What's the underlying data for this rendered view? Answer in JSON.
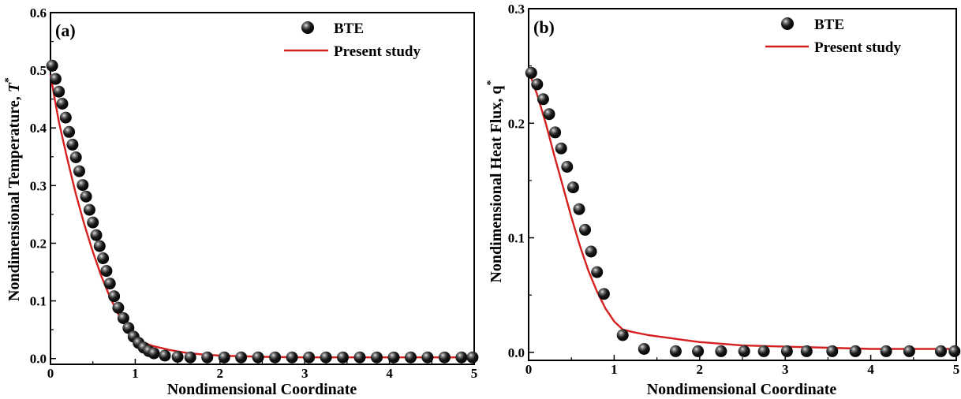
{
  "colors": {
    "model_line": "#d62020",
    "marker": "#111111",
    "axis": "#000000"
  },
  "chart_data": [
    {
      "type": "scatter",
      "panel_label": "(a)",
      "xlabel": "Nondimensional Coordinate",
      "ylabel": {
        "text": "Nondimensional Temperature, ",
        "symbol": "T",
        "superscript": "*"
      },
      "xlim": [
        0,
        5
      ],
      "ylim": [
        -0.01,
        0.6
      ],
      "xticks": [
        "0",
        "1",
        "2",
        "3",
        "4",
        "5"
      ],
      "yticks": [
        "0.0",
        "0.1",
        "0.2",
        "0.3",
        "0.4",
        "0.5",
        "0.6"
      ],
      "legend": {
        "position": "top-right",
        "entries": [
          "BTE",
          "Present study"
        ]
      },
      "series": [
        {
          "name": "BTE",
          "kind": "markers",
          "x": [
            0.02,
            0.06,
            0.1,
            0.14,
            0.18,
            0.22,
            0.26,
            0.3,
            0.34,
            0.38,
            0.42,
            0.46,
            0.5,
            0.54,
            0.58,
            0.62,
            0.66,
            0.7,
            0.75,
            0.8,
            0.86,
            0.92,
            0.98,
            1.04,
            1.1,
            1.16,
            1.22,
            1.35,
            1.5,
            1.65,
            1.85,
            2.05,
            2.25,
            2.45,
            2.65,
            2.85,
            3.05,
            3.25,
            3.45,
            3.65,
            3.85,
            4.05,
            4.25,
            4.45,
            4.65,
            4.85,
            4.98
          ],
          "y": [
            0.508,
            0.485,
            0.463,
            0.442,
            0.418,
            0.393,
            0.371,
            0.349,
            0.325,
            0.301,
            0.281,
            0.258,
            0.236,
            0.214,
            0.195,
            0.174,
            0.152,
            0.13,
            0.108,
            0.088,
            0.07,
            0.053,
            0.038,
            0.027,
            0.019,
            0.013,
            0.009,
            0.005,
            0.003,
            0.002,
            0.002,
            0.002,
            0.002,
            0.002,
            0.002,
            0.002,
            0.002,
            0.002,
            0.002,
            0.002,
            0.002,
            0.002,
            0.002,
            0.002,
            0.002,
            0.002,
            0.002
          ]
        },
        {
          "name": "Present study",
          "kind": "line",
          "x": [
            0.0,
            0.05,
            0.1,
            0.2,
            0.3,
            0.4,
            0.5,
            0.6,
            0.7,
            0.8,
            0.9,
            1.0,
            1.1,
            1.2,
            1.4,
            1.6,
            1.8,
            2.0,
            2.5,
            3.0,
            4.0,
            5.0
          ],
          "y": [
            0.492,
            0.45,
            0.41,
            0.345,
            0.285,
            0.232,
            0.185,
            0.143,
            0.107,
            0.077,
            0.054,
            0.037,
            0.028,
            0.022,
            0.015,
            0.01,
            0.007,
            0.005,
            0.003,
            0.002,
            0.002,
            0.002
          ]
        }
      ]
    },
    {
      "type": "scatter",
      "panel_label": "(b)",
      "xlabel": "Nondimensional Coordinate",
      "ylabel": {
        "text": "Nondimensional Heat Flux, q",
        "symbol": "",
        "superscript": "*"
      },
      "xlim": [
        0,
        5
      ],
      "ylim": [
        -0.007,
        0.3
      ],
      "xticks": [
        "0",
        "1",
        "2",
        "3",
        "4",
        "5"
      ],
      "yticks": [
        "0.0",
        "0.1",
        "0.2",
        "0.3"
      ],
      "legend": {
        "position": "top-right",
        "entries": [
          "BTE",
          "Present study"
        ]
      },
      "series": [
        {
          "name": "BTE",
          "kind": "markers",
          "x": [
            0.03,
            0.1,
            0.17,
            0.24,
            0.31,
            0.38,
            0.45,
            0.52,
            0.59,
            0.66,
            0.73,
            0.8,
            0.88,
            1.1,
            1.35,
            1.72,
            1.98,
            2.25,
            2.52,
            2.75,
            3.02,
            3.25,
            3.55,
            3.82,
            4.18,
            4.45,
            4.82,
            4.98
          ],
          "y": [
            0.244,
            0.234,
            0.221,
            0.208,
            0.192,
            0.178,
            0.162,
            0.144,
            0.125,
            0.107,
            0.088,
            0.07,
            0.051,
            0.015,
            0.003,
            0.001,
            0.001,
            0.001,
            0.001,
            0.001,
            0.001,
            0.001,
            0.001,
            0.001,
            0.001,
            0.001,
            0.001,
            0.001
          ]
        },
        {
          "name": "Present study",
          "kind": "line",
          "x": [
            0.0,
            0.1,
            0.2,
            0.3,
            0.4,
            0.5,
            0.6,
            0.7,
            0.8,
            0.9,
            1.0,
            1.1,
            1.2,
            1.4,
            1.6,
            1.8,
            2.0,
            2.5,
            3.0,
            3.5,
            4.0,
            4.5,
            5.0
          ],
          "y": [
            0.246,
            0.225,
            0.2,
            0.172,
            0.145,
            0.118,
            0.093,
            0.071,
            0.053,
            0.038,
            0.027,
            0.02,
            0.018,
            0.015,
            0.013,
            0.011,
            0.009,
            0.006,
            0.005,
            0.004,
            0.003,
            0.003,
            0.003
          ]
        }
      ]
    }
  ]
}
